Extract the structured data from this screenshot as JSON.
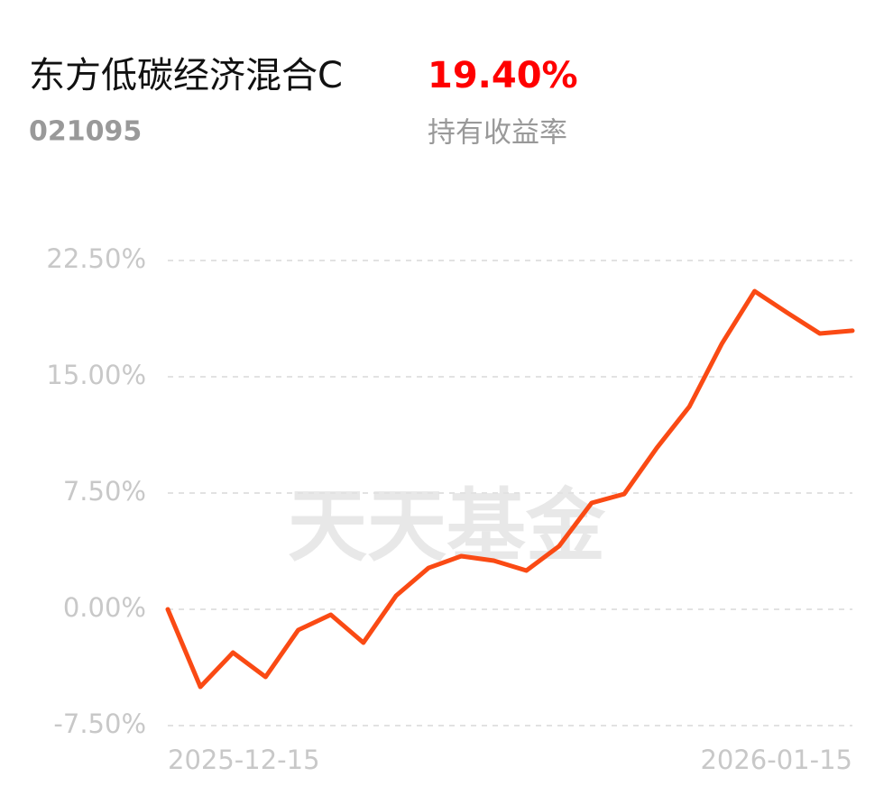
{
  "chart_data": {
    "type": "line",
    "title": "东方低碳经济混合C",
    "subtitle": "021095",
    "return_value": "19.40%",
    "return_label": "持有收益率",
    "watermark": "天天基金",
    "categories": [
      "2025-12-15",
      null,
      null,
      null,
      null,
      null,
      null,
      null,
      null,
      null,
      null,
      null,
      null,
      null,
      null,
      null,
      null,
      null,
      null,
      null,
      null,
      "2026-01-15"
    ],
    "series": [
      {
        "color": "#fa4a14",
        "values": [
          0,
          -5.0,
          -2.79,
          -4.36,
          -1.34,
          -0.35,
          -2.15,
          0.87,
          2.67,
          3.43,
          3.14,
          2.5,
          4.07,
          6.86,
          7.44,
          10.41,
          13.08,
          17.15,
          20.52,
          19.13,
          17.79,
          17.97
        ]
      }
    ],
    "ylim": [
      -7.5,
      22.5
    ],
    "yticks": [
      {
        "value": -7.5,
        "label": "-7.50%"
      },
      {
        "value": 0,
        "label": "0.00%"
      },
      {
        "value": 7.5,
        "label": "7.50%"
      },
      {
        "value": 15,
        "label": "15.00%"
      },
      {
        "value": 22.5,
        "label": "22.50%"
      }
    ],
    "grid": true
  }
}
